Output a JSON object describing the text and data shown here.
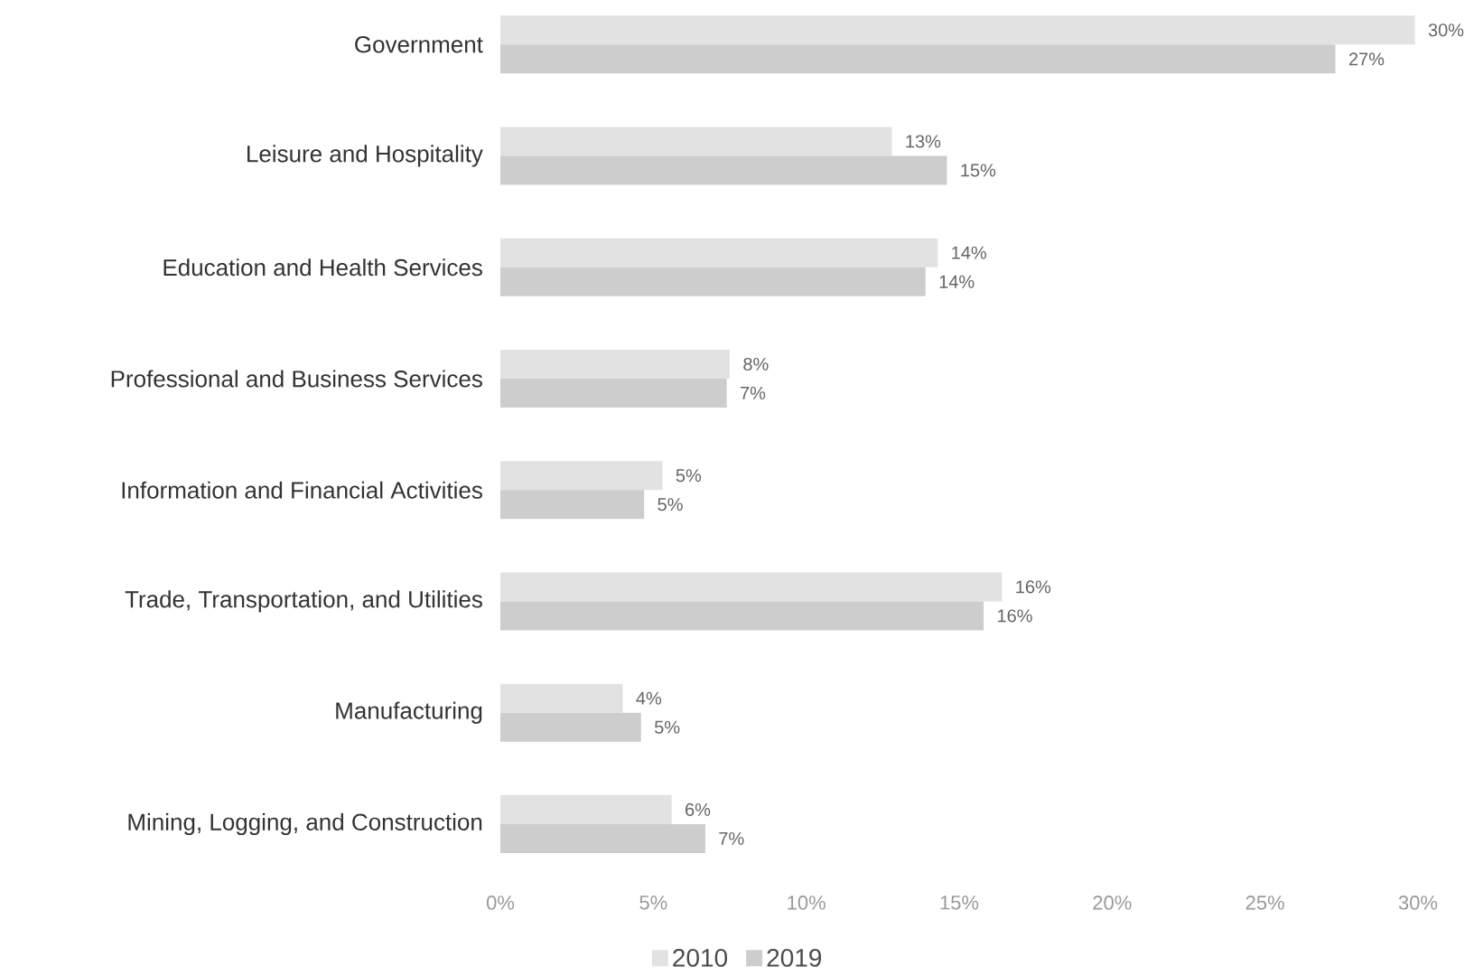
{
  "chart_data": {
    "type": "bar",
    "orientation": "horizontal",
    "categories": [
      "Government",
      "Leisure and Hospitality",
      "Education and Health Services",
      "Professional and Business Services",
      "Information and Financial Activities",
      "Trade, Transportation, and Utilities",
      "Manufacturing",
      "Mining, Logging, and Construction"
    ],
    "series": [
      {
        "name": "2010",
        "color": "#e2e2e2",
        "values": [
          29.9,
          12.8,
          14.3,
          7.5,
          5.3,
          16.4,
          4.0,
          5.6
        ],
        "value_labels": [
          "30%",
          "13%",
          "14%",
          "8%",
          "5%",
          "16%",
          "4%",
          "6%"
        ]
      },
      {
        "name": "2019",
        "color": "#cdcdcd",
        "values": [
          27.3,
          14.6,
          13.9,
          7.4,
          4.7,
          15.8,
          4.6,
          6.7
        ],
        "value_labels": [
          "27%",
          "15%",
          "14%",
          "7%",
          "5%",
          "16%",
          "5%",
          "7%"
        ]
      }
    ],
    "xlim": [
      0,
      30
    ],
    "xticks": [
      {
        "value": 0,
        "label": "0%"
      },
      {
        "value": 5,
        "label": "5%"
      },
      {
        "value": 10,
        "label": "10%"
      },
      {
        "value": 15,
        "label": "15%"
      },
      {
        "value": 20,
        "label": "20%"
      },
      {
        "value": 25,
        "label": "25%"
      },
      {
        "value": 30,
        "label": "30%"
      }
    ],
    "grid": false,
    "legend": "bottom"
  }
}
